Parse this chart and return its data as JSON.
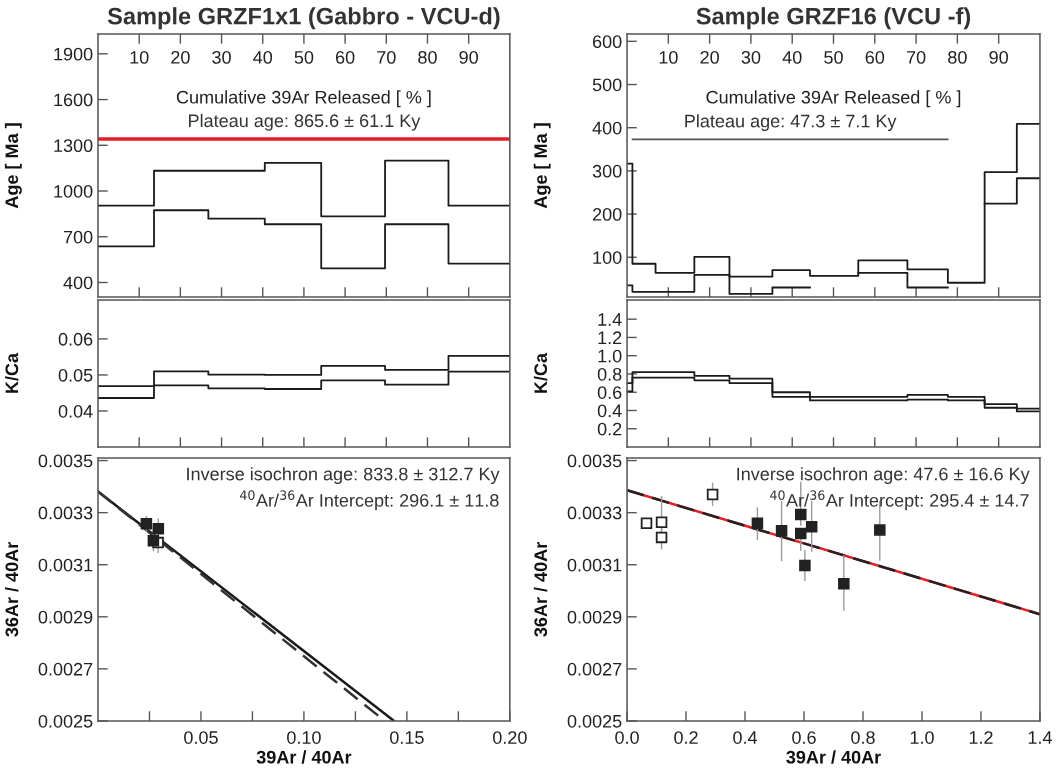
{
  "chart_data": [
    {
      "type": "step",
      "title": "Sample GRZF1x1 (Gabbro - VCU-d)",
      "ylabel": "Age [ Ma ]",
      "xlabel": "Cumulative 39Ar Released [ % ]",
      "xlim": [
        0,
        100
      ],
      "xticks": [
        10,
        20,
        30,
        40,
        50,
        60,
        70,
        80,
        90
      ],
      "ylim": [
        305,
        2030
      ],
      "yticks": [
        400,
        700,
        1000,
        1300,
        1600,
        1900
      ],
      "series": [
        {
          "color": "#1a1a1a",
          "x": [
            0,
            13.6,
            26.8,
            40.5,
            54.2,
            69.7,
            85.1,
            100
          ],
          "values": [
            904,
            1133,
            1133,
            1185,
            834,
            1200,
            904,
            904
          ]
        },
        {
          "color": "#1a1a1a",
          "x": [
            0,
            13.6,
            26.8,
            40.5,
            54.2,
            69.7,
            85.1,
            100
          ],
          "values": [
            637,
            874,
            819,
            782,
            493,
            782,
            524,
            524
          ]
        }
      ],
      "ref_lines": [
        {
          "axis": "y",
          "value": 1341,
          "color": "#e31e24"
        }
      ],
      "annotations": [
        {
          "text": "Plateau age: 865.6 ± 61.1 Ky",
          "x": 50,
          "y": 1341
        }
      ]
    },
    {
      "type": "step",
      "title": "Sample GRZF16 (VCU -f)",
      "ylabel": "Age [ Ma ]",
      "xlabel": "Cumulative 39Ar Released [ % ]",
      "xlim": [
        0,
        100
      ],
      "xticks": [
        10,
        20,
        30,
        40,
        50,
        60,
        70,
        80,
        90
      ],
      "ylim": [
        8,
        617
      ],
      "yticks": [
        100,
        200,
        300,
        400,
        500,
        600
      ],
      "series": [
        {
          "color": "#1a1a1a",
          "x": [
            0,
            1.3,
            6.9,
            16.3,
            24.8,
            35.2,
            44.3,
            56.0,
            67.9,
            77.7,
            86.6,
            94.4,
            100
          ],
          "values": [
            317,
            85,
            64,
            101,
            55,
            70,
            57,
            93,
            72,
            41,
            297,
            409,
            409
          ]
        },
        {
          "color": "#1a1a1a",
          "x": [
            0,
            1.3,
            6.9,
            16.3,
            24.8,
            35.2,
            44.3,
            56.0,
            67.9,
            77.7,
            86.6,
            94.4,
            100
          ],
          "values": [
            35,
            20,
            20,
            59,
            15,
            30,
            null,
            64,
            30,
            null,
            224,
            283,
            283
          ]
        },
        {
          "type": "line",
          "line_style": "solid",
          "color": "#555555",
          "x": [
            1.3,
            77.7
          ],
          "values": [
            373,
            373
          ]
        }
      ],
      "annotations": [
        {
          "text": "Plateau age: 47.3 ± 7.1 Ky",
          "x": 39.5,
          "y": 373
        }
      ]
    },
    {
      "type": "step",
      "ylabel": "K/Ca",
      "tick_labels": "y",
      "xlim": [
        0,
        100
      ],
      "xticks": [
        10,
        20,
        30,
        40,
        50,
        60,
        70,
        80,
        90
      ],
      "ylim": [
        0.03,
        0.0708
      ],
      "yticks": [
        0.04,
        0.05,
        0.06
      ],
      "series": [
        {
          "color": "#1a1a1a",
          "x": [
            0,
            13.6,
            26.8,
            40.5,
            54.2,
            69.7,
            85.1,
            100
          ],
          "values": [
            0.0469,
            0.051,
            0.0501,
            0.05,
            0.0525,
            0.0514,
            0.0553,
            0.0553
          ]
        },
        {
          "color": "#1a1a1a",
          "x": [
            0,
            13.6,
            26.8,
            40.5,
            54.2,
            69.7,
            85.1,
            100
          ],
          "values": [
            0.0436,
            0.0471,
            0.0463,
            0.0461,
            0.0485,
            0.0473,
            0.0509,
            0.0509
          ]
        }
      ]
    },
    {
      "type": "step",
      "ylabel": "K/Ca",
      "tick_labels": "y",
      "xlim": [
        0,
        100
      ],
      "xticks": [
        10,
        20,
        30,
        40,
        50,
        60,
        70,
        80,
        90
      ],
      "ylim": [
        0,
        1.61
      ],
      "yticks": [
        0.2,
        0.4,
        0.6,
        0.8,
        {
          "value": 1.0,
          "label": "1.0"
        },
        1.2,
        1.4
      ],
      "series": [
        {
          "color": "#1a1a1a",
          "x": [
            0,
            1.3,
            6.9,
            16.3,
            24.8,
            35.2,
            44.3,
            56.0,
            67.9,
            77.7,
            86.6,
            94.4,
            100
          ],
          "values": [
            0.7,
            0.82,
            0.82,
            0.78,
            0.75,
            0.6,
            0.55,
            0.55,
            0.57,
            0.55,
            0.47,
            0.42,
            0.42
          ]
        },
        {
          "color": "#1a1a1a",
          "x": [
            0,
            1.3,
            6.9,
            16.3,
            24.8,
            35.2,
            44.3,
            56.0,
            67.9,
            77.7,
            86.6,
            94.4,
            100
          ],
          "values": [
            0.61,
            0.76,
            0.76,
            0.73,
            0.7,
            0.55,
            0.51,
            0.51,
            0.52,
            0.51,
            0.43,
            0.39,
            0.39
          ]
        }
      ]
    },
    {
      "type": "scatter",
      "ylabel": "36Ar / 40Ar",
      "xlabel": "39Ar / 40Ar",
      "xlim": [
        0,
        0.2
      ],
      "xticks": [
        {
          "value": 0.025,
          "label": null
        },
        0.05,
        {
          "value": 0.075,
          "label": null
        },
        {
          "value": 0.1,
          "label": "0.10"
        },
        {
          "value": 0.125,
          "label": null
        },
        0.15,
        {
          "value": 0.175,
          "label": null
        },
        {
          "value": 0.2,
          "label": "0.20"
        }
      ],
      "ylim": [
        0.0025,
        0.00351
      ],
      "yticks": [
        0.0025,
        0.0027,
        0.0029,
        0.0031,
        0.0033,
        0.0035
      ],
      "series": [
        {
          "type": "line",
          "color": "#1a1a1a",
          "line_style": "solid",
          "x": [
            0,
            0.1438
          ],
          "values": [
            0.003381,
            0.0025
          ]
        },
        {
          "type": "line",
          "color": "#333333",
          "line_style": "dashed",
          "x": [
            0,
            0.1393
          ],
          "values": [
            0.003381,
            0.0025
          ]
        },
        {
          "marker": "square",
          "color": "#ffffff",
          "x": [
            0.0292
          ],
          "values": [
            0.003185
          ],
          "errors": [
            4e-05
          ]
        },
        {
          "marker": "square",
          "color": "#222222",
          "x": [
            0.0235,
            0.0293,
            0.0269
          ],
          "values": [
            0.003257,
            0.003238,
            0.003192
          ],
          "errors": [
            3e-05,
            4e-05,
            4e-05
          ]
        }
      ],
      "annotations": [
        "Inverse isochron age: 833.8 ± 312.7 Ky",
        "$^{40}$Ar/$^{36}$Ar Intercept: 296.1 ± 11.8"
      ]
    },
    {
      "type": "scatter",
      "ylabel": "36Ar / 40Ar",
      "xlabel": "39Ar / 40Ar",
      "xlim": [
        0,
        1.4
      ],
      "xticks": [
        {
          "value": 0,
          "label": "0.0"
        },
        0.2,
        0.4,
        0.6,
        0.8,
        {
          "value": 1.0,
          "label": "1.0"
        },
        1.2,
        1.4
      ],
      "ylim": [
        0.0025,
        0.00351
      ],
      "yticks": [
        0.0025,
        0.0027,
        0.0029,
        0.0031,
        0.0033,
        0.0035
      ],
      "series": [
        {
          "type": "line",
          "color": "#e31e24",
          "line_style": "solid",
          "x": [
            0,
            1.4
          ],
          "values": [
            0.003386,
            0.00291
          ]
        },
        {
          "type": "line",
          "color": "#222222",
          "line_style": "dashed",
          "x": [
            0,
            1.4
          ],
          "values": [
            0.003386,
            0.00291
          ]
        },
        {
          "marker": "square",
          "color": "#ffffff",
          "x": [
            0.066,
            0.117,
            0.117,
            0.29
          ],
          "values": [
            0.003259,
            0.003263,
            0.003205,
            0.00337
          ],
          "errors": [
            2e-05,
            [
              0.00322,
              0.003364
            ],
            [
              0.003159,
              0.00325
            ],
            [
              0.003326,
              0.003415
            ]
          ]
        },
        {
          "marker": "square",
          "color": "#222222",
          "x": [
            0.442,
            0.524,
            0.589,
            0.589,
            0.626,
            0.603,
            0.735,
            0.857
          ],
          "values": [
            0.003259,
            0.00323,
            0.003293,
            0.00322,
            0.003246,
            0.003097,
            0.003027,
            0.003233
          ],
          "errors": [
            [
              0.003195,
              0.00332
            ],
            [
              0.003114,
              0.003345
            ],
            [
              0.00325,
              0.003419
            ],
            [
              0.003154,
              0.00322
            ],
            [
              0.00315,
              0.003345
            ],
            [
              0.003038,
              0.003157
            ],
            [
              0.002923,
              0.003137
            ],
            [
              0.003115,
              0.003345
            ]
          ]
        }
      ],
      "annotations": [
        "Inverse isochron age: 47.6 ± 16.6 Ky",
        "$^{40}$Ar/$^{36}$Ar Intercept: 295.4 ± 14.7"
      ]
    }
  ]
}
